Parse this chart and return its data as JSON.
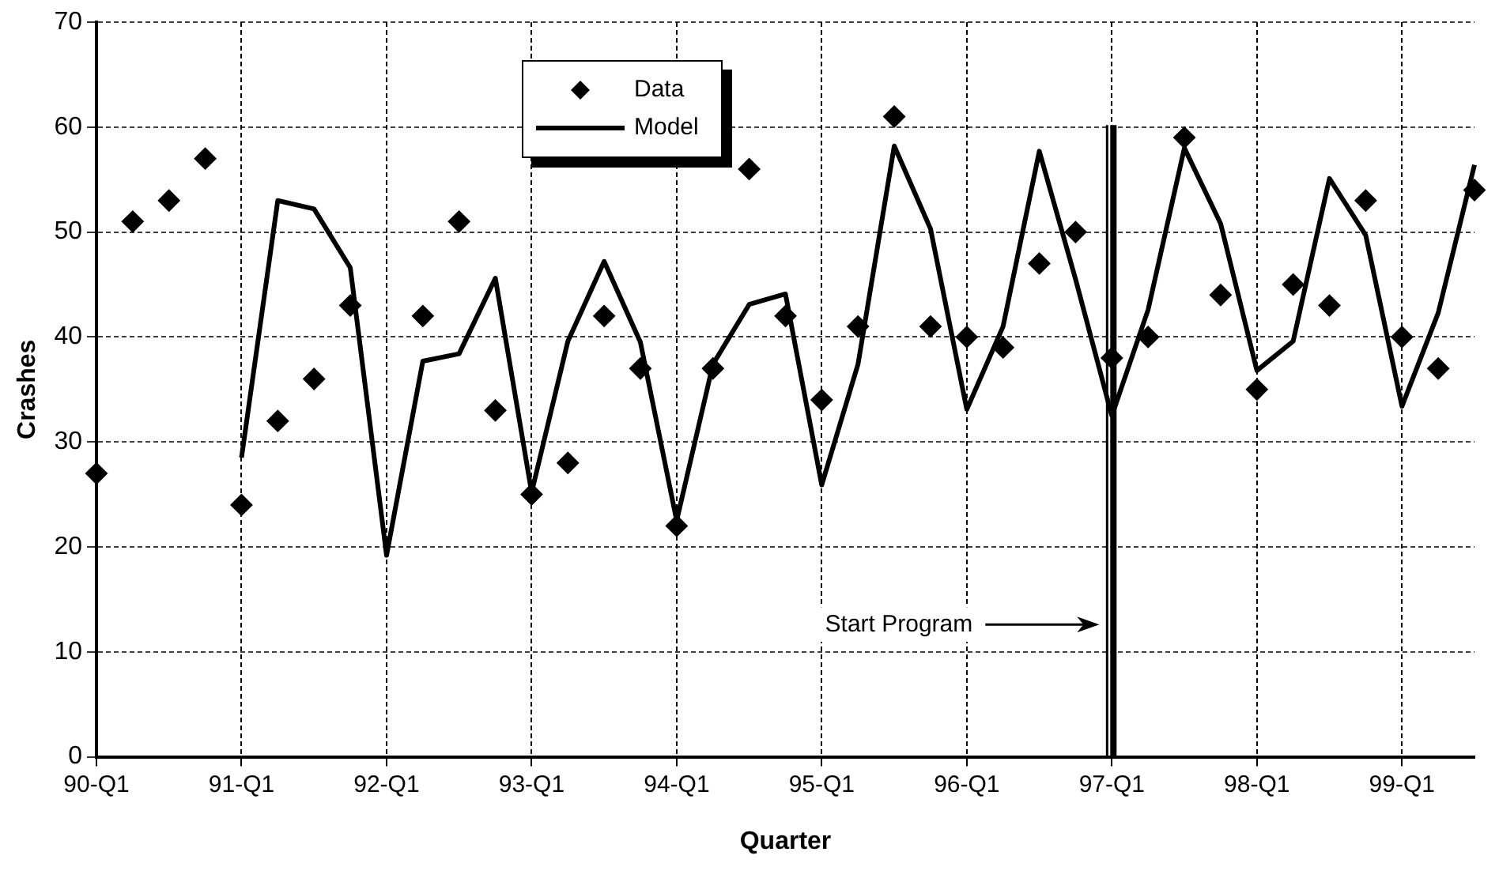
{
  "chart_data": {
    "type": "line",
    "xlabel": "Quarter",
    "ylabel": "Crashes",
    "categories": [
      "90-Q1",
      null,
      null,
      null,
      "91-Q1",
      null,
      null,
      null,
      "92-Q1",
      null,
      null,
      null,
      "93-Q1",
      null,
      null,
      null,
      "94-Q1",
      null,
      null,
      null,
      "95-Q1",
      null,
      null,
      null,
      "96-Q1",
      null,
      null,
      null,
      "97-Q1",
      null,
      null,
      null,
      "98-Q1",
      null,
      null,
      null,
      "99-Q1",
      null,
      null
    ],
    "series": [
      {
        "name": "Data",
        "type": "scatter",
        "marker": "diamond",
        "color": "#000000",
        "values": [
          27,
          51,
          53,
          57,
          24,
          32,
          36,
          43,
          null,
          42,
          51,
          33,
          25,
          28,
          42,
          37,
          22,
          37,
          56,
          42,
          34,
          41,
          61,
          41,
          40,
          39,
          47,
          50,
          38,
          40,
          59,
          44,
          35,
          45,
          43,
          53,
          40,
          37,
          54
        ]
      },
      {
        "name": "Model",
        "type": "line",
        "marker": "none",
        "line_style": "solid",
        "color": "#000000",
        "values": [
          null,
          null,
          null,
          null,
          28.5,
          53,
          52.2,
          46.6,
          19.2,
          37.7,
          38.4,
          45.6,
          25.2,
          39.6,
          47.2,
          39.5,
          22.5,
          37.4,
          43.1,
          44.1,
          25.9,
          37.4,
          58.2,
          50.3,
          33.1,
          41,
          57.7,
          45.5,
          32.5,
          42.6,
          58,
          50.8,
          36.8,
          39.6,
          55.1,
          49.7,
          33.4,
          42.3,
          56.4
        ]
      }
    ],
    "ylim": [
      0,
      70
    ],
    "yticks": [
      0,
      10,
      20,
      30,
      40,
      50,
      60,
      70
    ],
    "grid": true,
    "legend": "top left",
    "ref_lines": [
      {
        "axis": "x",
        "value": "97-Q1",
        "label": "Start Program",
        "color": "#000000"
      }
    ]
  }
}
